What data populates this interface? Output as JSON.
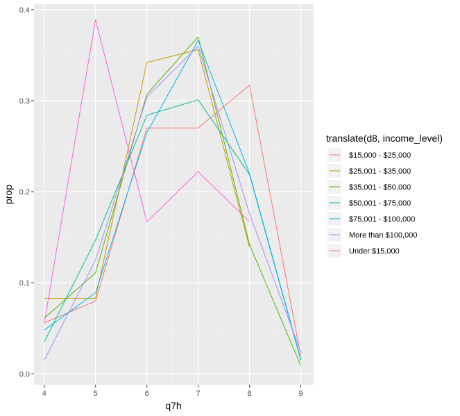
{
  "chart_data": {
    "type": "line",
    "xlabel": "q7h",
    "ylabel": "prop",
    "legend_title": "translate(d8, income_level)",
    "legend_position": "right",
    "grid": true,
    "panel_background": "#EBEBEB",
    "gridline_color": "#FFFFFF",
    "xlim": [
      3.8,
      9.25
    ],
    "ylim": [
      -0.012,
      0.406
    ],
    "x_ticks": [
      4,
      5,
      6,
      7,
      8,
      9
    ],
    "y_ticks": [
      0.0,
      0.1,
      0.2,
      0.3,
      0.4
    ],
    "x_tick_labels": [
      "4",
      "5",
      "6",
      "7",
      "8",
      "9"
    ],
    "y_tick_labels": [
      "0.0",
      "0.1",
      "0.2",
      "0.3",
      "0.4"
    ],
    "series": [
      {
        "name": "$15,000 - $25,000",
        "color": "#F8766D",
        "x": [
          4,
          5,
          6,
          7,
          8,
          9
        ],
        "y": [
          0.056,
          0.08,
          0.27,
          0.27,
          0.317,
          0.02
        ]
      },
      {
        "name": "$25,001 - $35,000",
        "color": "#C49A00",
        "x": [
          4,
          5,
          6,
          7,
          8
        ],
        "y": [
          0.083,
          0.083,
          0.342,
          0.356,
          0.139
        ]
      },
      {
        "name": "$35,001 - $50,000",
        "color": "#53B400",
        "x": [
          4,
          5,
          6,
          7,
          8,
          9
        ],
        "y": [
          0.061,
          0.111,
          0.307,
          0.37,
          0.142,
          0.009
        ]
      },
      {
        "name": "$50,001 - $75,000",
        "color": "#00C094",
        "x": [
          4,
          5,
          6,
          7,
          8,
          9
        ],
        "y": [
          0.035,
          0.147,
          0.284,
          0.301,
          0.219,
          0.015
        ]
      },
      {
        "name": "$75,001 - $100,000",
        "color": "#00B6EB",
        "x": [
          4,
          5,
          6,
          7,
          8,
          9
        ],
        "y": [
          0.048,
          0.089,
          0.265,
          0.366,
          0.22,
          0.016
        ]
      },
      {
        "name": "More than $100,000",
        "color": "#A58AFF",
        "x": [
          4,
          5,
          6,
          7,
          8,
          9
        ],
        "y": [
          0.015,
          0.125,
          0.304,
          0.36,
          0.176,
          0.024
        ]
      },
      {
        "name": "Under $15,000",
        "color": "#FB61D7",
        "x": [
          4,
          5,
          6,
          7,
          8
        ],
        "y": [
          0.056,
          0.389,
          0.167,
          0.222,
          0.167
        ]
      }
    ]
  }
}
